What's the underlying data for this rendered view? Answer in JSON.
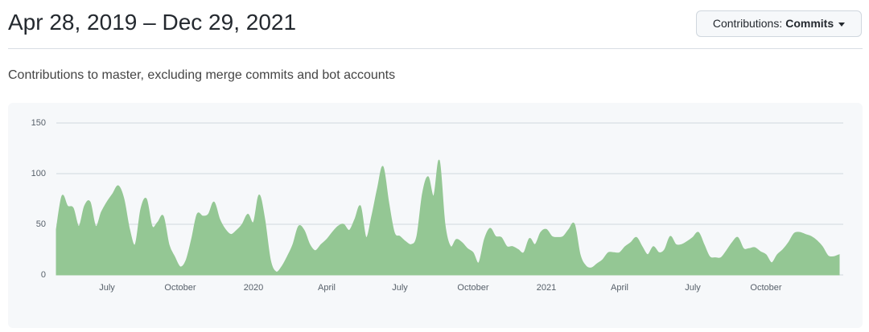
{
  "header": {
    "title": "Apr 28, 2019 – Dec 29, 2021",
    "button": {
      "label": "Contributions:",
      "value": "Commits"
    },
    "subtitle": "Contributions to master, excluding merge commits and bot accounts"
  },
  "chart_data": {
    "type": "area",
    "categories": [
      null,
      null,
      null,
      null,
      null,
      null,
      null,
      null,
      null,
      "July",
      null,
      null,
      null,
      null,
      null,
      null,
      null,
      null,
      null,
      null,
      null,
      null,
      "October",
      null,
      null,
      null,
      null,
      null,
      null,
      null,
      null,
      null,
      null,
      null,
      null,
      "2020",
      null,
      null,
      null,
      null,
      null,
      null,
      null,
      null,
      null,
      null,
      null,
      null,
      "April",
      null,
      null,
      null,
      null,
      null,
      null,
      null,
      null,
      null,
      null,
      null,
      null,
      "July",
      null,
      null,
      null,
      null,
      null,
      null,
      null,
      null,
      null,
      null,
      null,
      null,
      "October",
      null,
      null,
      null,
      null,
      null,
      null,
      null,
      null,
      null,
      null,
      null,
      null,
      "2021",
      null,
      null,
      null,
      null,
      null,
      null,
      null,
      null,
      null,
      null,
      null,
      null,
      "April",
      null,
      null,
      null,
      null,
      null,
      null,
      null,
      null,
      null,
      null,
      null,
      null,
      "July",
      null,
      null,
      null,
      null,
      null,
      null,
      null,
      null,
      null,
      null,
      null,
      null,
      "October",
      null,
      null,
      null,
      null,
      null,
      null,
      null,
      null,
      null,
      null,
      null,
      null,
      null
    ],
    "values": [
      45,
      78,
      68,
      66,
      48,
      68,
      72,
      48,
      62,
      72,
      80,
      88,
      75,
      45,
      30,
      65,
      75,
      48,
      52,
      58,
      30,
      18,
      8,
      14,
      35,
      60,
      58,
      60,
      72,
      55,
      45,
      40,
      44,
      50,
      60,
      52,
      79,
      55,
      15,
      3,
      8,
      18,
      30,
      48,
      44,
      30,
      24,
      30,
      35,
      42,
      48,
      50,
      44,
      55,
      68,
      37,
      58,
      85,
      107,
      72,
      42,
      38,
      33,
      30,
      38,
      80,
      97,
      78,
      113,
      50,
      28,
      35,
      32,
      26,
      22,
      12,
      35,
      46,
      38,
      37,
      28,
      28,
      25,
      22,
      36,
      30,
      42,
      45,
      38,
      37,
      38,
      45,
      50,
      20,
      9,
      7,
      11,
      15,
      22,
      22,
      22,
      28,
      32,
      37,
      28,
      20,
      28,
      22,
      25,
      38,
      30,
      30,
      33,
      37,
      42,
      30,
      18,
      17,
      17,
      24,
      32,
      37,
      26,
      26,
      27,
      23,
      20,
      12,
      20,
      25,
      32,
      41,
      42,
      40,
      38,
      34,
      28,
      19,
      18,
      20
    ],
    "color": "#94c794",
    "ylim": [
      0,
      150
    ],
    "yticks": [
      0,
      50,
      100,
      150
    ],
    "grid": true
  }
}
